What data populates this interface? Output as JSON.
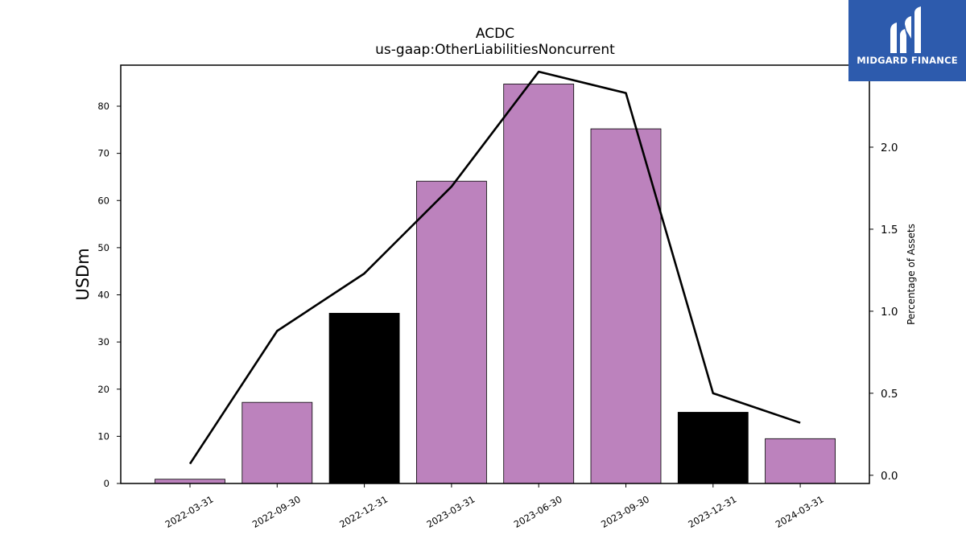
{
  "chart_data": {
    "type": "bar",
    "title": "ACDC",
    "subtitle": "us-gaap:OtherLiabilitiesNoncurrent",
    "ylabel": "USDm",
    "y2label": "Percentage of Assets",
    "categories": [
      "2022-03-31",
      "2022-09-30",
      "2022-12-31",
      "2023-03-31",
      "2023-06-30",
      "2023-09-30",
      "2023-12-31",
      "2024-03-31"
    ],
    "series": [
      {
        "type": "bar",
        "values": [
          0.9,
          17.2,
          36.1,
          64.1,
          84.7,
          75.2,
          15.1,
          9.5
        ],
        "colors": [
          "#bc82bd",
          "#bc82bd",
          "#000000",
          "#bc82bd",
          "#bc82bd",
          "#bc82bd",
          "#000000",
          "#bc82bd"
        ],
        "axis": "left"
      },
      {
        "type": "line",
        "values": [
          0.07,
          0.88,
          1.23,
          1.76,
          2.46,
          2.33,
          0.5,
          0.32
        ],
        "color": "#000000",
        "axis": "right"
      }
    ],
    "ylim": [
      0,
      88.7
    ],
    "yticks": [
      0,
      10,
      20,
      30,
      40,
      50,
      60,
      70,
      80
    ],
    "y2lim": [
      -0.05,
      2.5
    ],
    "y2ticks": [
      "0.0",
      "0.5",
      "1.0",
      "1.5",
      "2.0"
    ],
    "grid": false,
    "legend": "none"
  },
  "logo": {
    "text": "MIDGARD FINANCE",
    "background": "#2d5bad"
  }
}
